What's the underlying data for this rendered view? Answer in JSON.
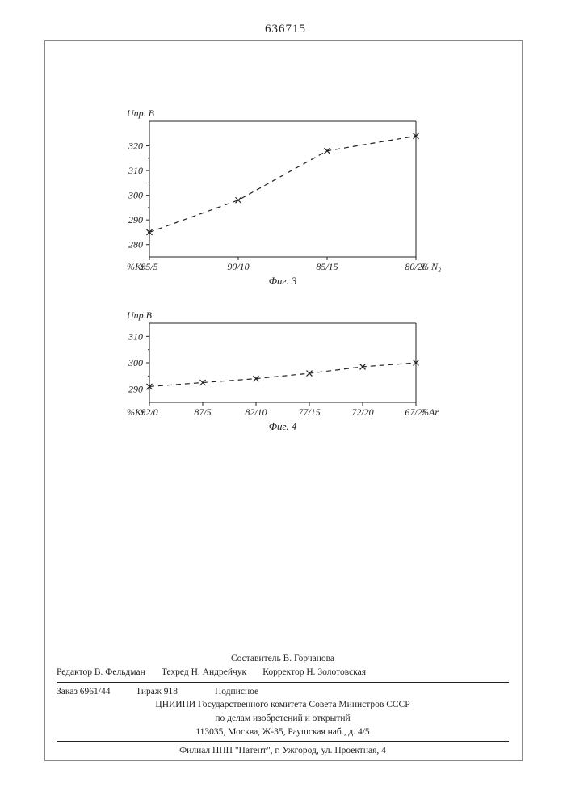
{
  "doc_number": "636715",
  "chart_fig3": {
    "type": "line",
    "y_label": "Uпр. В",
    "x_left_label": "%Kr",
    "x_right_label": "% N₂",
    "caption": "Фиг. 3",
    "x_categories": [
      "95/5",
      "90/10",
      "85/15",
      "80/20"
    ],
    "x_positions": [
      0,
      1,
      2,
      3
    ],
    "y_values": [
      285,
      298,
      318,
      324
    ],
    "y_ticks": [
      280,
      290,
      300,
      310,
      320
    ],
    "ylim": [
      275,
      330
    ],
    "line_color": "#222222",
    "marker": "x",
    "dash": "6,5",
    "axis_color": "#222222",
    "font_size": 12
  },
  "chart_fig4": {
    "type": "line",
    "y_label": "Uпр.В",
    "x_left_label": "%Kr",
    "x_right_label": "%Ar",
    "caption": "Фиг. 4",
    "x_categories": [
      "92/0",
      "87/5",
      "82/10",
      "77/15",
      "72/20",
      "67/25"
    ],
    "x_positions": [
      0,
      1,
      2,
      3,
      4,
      5
    ],
    "y_values": [
      291,
      292.5,
      294,
      296,
      298.5,
      300
    ],
    "y_ticks": [
      290,
      300,
      310
    ],
    "ylim": [
      285,
      315
    ],
    "line_color": "#222222",
    "marker": "x",
    "dash": "6,5",
    "axis_color": "#222222",
    "font_size": 12
  },
  "footer": {
    "compiler": "Составитель В. Горчанова",
    "editor_label": "Редактор",
    "editor": "В. Фельдман",
    "techred_label": "Техред",
    "techred": "Н. Андрейчук",
    "corrector_label": "Корректор",
    "corrector": "Н. Золотовская",
    "order": "Заказ 6961/44",
    "tirage": "Тираж 918",
    "subscription": "Подписное",
    "org1": "ЦНИИПИ Государственного комитета Совета Министров СССР",
    "org2": "по делам изобретений и открытий",
    "address1": "113035, Москва, Ж-35, Раушская наб., д. 4/5",
    "address2": "Филиал ППП \"Патент\", г. Ужгород, ул. Проектная, 4"
  }
}
